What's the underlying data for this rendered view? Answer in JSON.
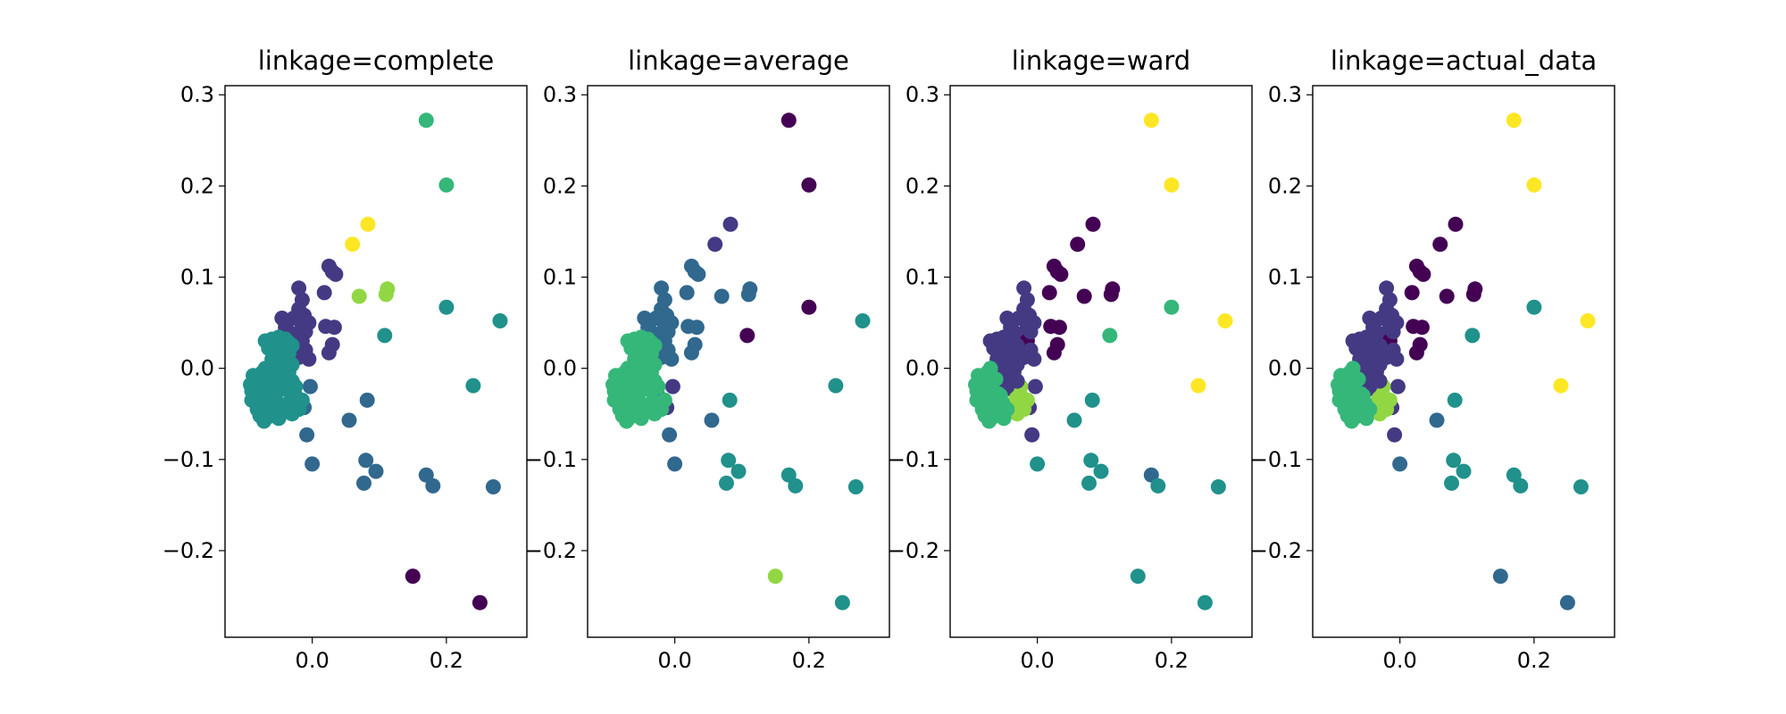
{
  "figure": {
    "background": "#ffffff"
  },
  "chart_data": [
    {
      "type": "scatter",
      "title": "linkage=complete",
      "xlim": [
        -0.13,
        0.32
      ],
      "ylim": [
        -0.295,
        0.31
      ],
      "xticks": [
        0.0,
        0.2
      ],
      "xtick_labels": [
        "0.0",
        "0.2"
      ],
      "yticks": [
        0.3,
        0.2,
        0.1,
        0.0,
        -0.1,
        -0.2
      ],
      "ytick_labels": [
        "0.3",
        "0.2",
        "0.1",
        "0.0",
        "−0.1",
        "−0.2"
      ],
      "cluster_colors": [
        "#440154",
        "#443a83",
        "#31688e",
        "#21918c",
        "#35b779",
        "#90d743",
        "#fde725"
      ],
      "point_labels": [
        0,
        0,
        2,
        2,
        2,
        2,
        2,
        2,
        2,
        2,
        2,
        2,
        2,
        2,
        1,
        1,
        1,
        1,
        1,
        1,
        1,
        1,
        1,
        1,
        1,
        1,
        1,
        1,
        1,
        1,
        1,
        1,
        1,
        1,
        1,
        1,
        1,
        1,
        1,
        6,
        6,
        5,
        5,
        5,
        3,
        3,
        4,
        4,
        3,
        3,
        3,
        3,
        3,
        3,
        3,
        3,
        3,
        3,
        3,
        3,
        3,
        3,
        3,
        3,
        3,
        3,
        3,
        3,
        3,
        3,
        3,
        3,
        3,
        3,
        3,
        3,
        3,
        3,
        3,
        3,
        3,
        3,
        3,
        3,
        3,
        3,
        3,
        3,
        3,
        3,
        3,
        3,
        3,
        3,
        3,
        3,
        3,
        3,
        3,
        3,
        3,
        3,
        3,
        3,
        3,
        3,
        3,
        3,
        3,
        3,
        3,
        3,
        3,
        3,
        3,
        3,
        3,
        3,
        3,
        3
      ]
    },
    {
      "type": "scatter",
      "title": "linkage=average",
      "xlim": [
        -0.13,
        0.32
      ],
      "ylim": [
        -0.295,
        0.31
      ],
      "xticks": [
        0.0,
        0.2
      ],
      "xtick_labels": [
        "0.0",
        "0.2"
      ],
      "yticks": [
        0.3,
        0.2,
        0.1,
        0.0,
        -0.1,
        -0.2
      ],
      "ytick_labels": [
        "0.3",
        "0.2",
        "0.1",
        "0.0",
        "−0.1",
        "−0.2"
      ],
      "cluster_colors": [
        "#440154",
        "#443a83",
        "#31688e",
        "#21918c",
        "#35b779",
        "#90d743",
        "#fde725"
      ],
      "point_labels": [
        5,
        3,
        3,
        3,
        3,
        3,
        3,
        3,
        3,
        2,
        2,
        2,
        1,
        1,
        2,
        2,
        2,
        2,
        2,
        2,
        2,
        2,
        2,
        2,
        2,
        2,
        2,
        2,
        2,
        2,
        2,
        2,
        2,
        2,
        2,
        2,
        2,
        2,
        2,
        1,
        1,
        2,
        2,
        2,
        0,
        0,
        0,
        0,
        3,
        3,
        3,
        4,
        4,
        4,
        4,
        4,
        4,
        4,
        4,
        4,
        4,
        4,
        4,
        4,
        4,
        4,
        4,
        4,
        4,
        4,
        4,
        4,
        4,
        4,
        4,
        4,
        4,
        4,
        4,
        4,
        4,
        4,
        4,
        4,
        4,
        4,
        4,
        4,
        4,
        4,
        4,
        4,
        4,
        4,
        4,
        4,
        4,
        4,
        4,
        4,
        4,
        4,
        4,
        4,
        4,
        4,
        4,
        4,
        4,
        4,
        4,
        4,
        4,
        4,
        4,
        4,
        4,
        4,
        4,
        4
      ]
    },
    {
      "type": "scatter",
      "title": "linkage=ward",
      "xlim": [
        -0.13,
        0.32
      ],
      "ylim": [
        -0.295,
        0.31
      ],
      "xticks": [
        0.0,
        0.2
      ],
      "xtick_labels": [
        "0.0",
        "0.2"
      ],
      "yticks": [
        0.3,
        0.2,
        0.1,
        0.0,
        -0.1,
        -0.2
      ],
      "ytick_labels": [
        "0.3",
        "0.2",
        "0.1",
        "0.0",
        "−0.1",
        "−0.2"
      ],
      "cluster_colors": [
        "#440154",
        "#443a83",
        "#31688e",
        "#21918c",
        "#35b779",
        "#90d743",
        "#fde725"
      ],
      "point_labels": [
        3,
        3,
        2,
        3,
        3,
        3,
        3,
        3,
        3,
        3,
        3,
        1,
        1,
        1,
        1,
        1,
        1,
        1,
        1,
        1,
        1,
        1,
        1,
        1,
        1,
        1,
        0,
        0,
        0,
        0,
        0,
        0,
        0,
        0,
        0,
        1,
        1,
        1,
        1,
        0,
        0,
        0,
        0,
        0,
        4,
        4,
        6,
        6,
        6,
        6,
        5,
        5,
        5,
        5,
        5,
        5,
        5,
        5,
        5,
        5,
        5,
        1,
        1,
        1,
        1,
        1,
        1,
        1,
        1,
        1,
        1,
        1,
        1,
        1,
        1,
        1,
        1,
        1,
        1,
        1,
        1,
        1,
        1,
        1,
        1,
        1,
        1,
        1,
        1,
        4,
        4,
        4,
        4,
        4,
        4,
        4,
        4,
        4,
        4,
        4,
        4,
        4,
        4,
        4,
        4,
        4,
        4,
        4,
        4,
        4,
        4,
        4,
        4,
        4,
        4,
        4,
        4,
        4,
        4,
        4
      ]
    },
    {
      "type": "scatter",
      "title": "linkage=actual_data",
      "xlim": [
        -0.13,
        0.32
      ],
      "ylim": [
        -0.295,
        0.31
      ],
      "xticks": [
        0.0,
        0.2
      ],
      "xtick_labels": [
        "0.0",
        "0.2"
      ],
      "yticks": [
        0.3,
        0.2,
        0.1,
        0.0,
        -0.1,
        -0.2
      ],
      "ytick_labels": [
        "0.3",
        "0.2",
        "0.1",
        "0.0",
        "−0.1",
        "−0.2"
      ],
      "cluster_colors": [
        "#440154",
        "#443a83",
        "#31688e",
        "#21918c",
        "#35b779",
        "#90d743",
        "#fde725"
      ],
      "point_labels": [
        2,
        2,
        3,
        3,
        3,
        3,
        3,
        3,
        3,
        2,
        2,
        1,
        1,
        1,
        1,
        1,
        1,
        1,
        1,
        1,
        1,
        1,
        1,
        1,
        1,
        1,
        0,
        0,
        0,
        0,
        0,
        0,
        0,
        0,
        0,
        1,
        1,
        1,
        1,
        0,
        0,
        0,
        0,
        0,
        3,
        3,
        6,
        6,
        6,
        6,
        5,
        5,
        5,
        5,
        5,
        5,
        5,
        5,
        5,
        5,
        5,
        1,
        1,
        1,
        1,
        1,
        1,
        1,
        1,
        1,
        1,
        1,
        1,
        1,
        1,
        1,
        1,
        1,
        1,
        1,
        1,
        1,
        1,
        1,
        1,
        1,
        1,
        1,
        1,
        4,
        4,
        4,
        4,
        4,
        4,
        4,
        4,
        4,
        4,
        4,
        4,
        4,
        4,
        4,
        4,
        4,
        4,
        4,
        4,
        4,
        4,
        4,
        4,
        4,
        4,
        4,
        4,
        4,
        4,
        4
      ]
    }
  ],
  "points": [
    [
      0.15,
      -0.228
    ],
    [
      0.25,
      -0.257
    ],
    [
      0.17,
      -0.117
    ],
    [
      0.18,
      -0.129
    ],
    [
      0.27,
      -0.13
    ],
    [
      0.08,
      -0.101
    ],
    [
      0.095,
      -0.113
    ],
    [
      0.077,
      -0.126
    ],
    [
      0.082,
      -0.035
    ],
    [
      0.055,
      -0.057
    ],
    [
      0.0,
      -0.105
    ],
    [
      -0.008,
      -0.073
    ],
    [
      -0.012,
      -0.043
    ],
    [
      -0.003,
      -0.02
    ],
    [
      -0.02,
      0.088
    ],
    [
      -0.015,
      0.075
    ],
    [
      -0.02,
      0.065
    ],
    [
      -0.012,
      0.058
    ],
    [
      -0.028,
      0.055
    ],
    [
      -0.04,
      0.05
    ],
    [
      -0.045,
      0.055
    ],
    [
      -0.04,
      0.045
    ],
    [
      -0.035,
      0.04
    ],
    [
      -0.015,
      0.045
    ],
    [
      -0.005,
      0.05
    ],
    [
      -0.02,
      0.035
    ],
    [
      0.025,
      0.112
    ],
    [
      0.03,
      0.106
    ],
    [
      0.035,
      0.103
    ],
    [
      0.018,
      0.083
    ],
    [
      0.02,
      0.046
    ],
    [
      0.033,
      0.045
    ],
    [
      0.03,
      0.026
    ],
    [
      0.025,
      0.017
    ],
    [
      -0.015,
      0.03
    ],
    [
      -0.01,
      0.02
    ],
    [
      -0.005,
      0.01
    ],
    [
      -0.02,
      0.012
    ],
    [
      -0.01,
      0.04
    ],
    [
      0.06,
      0.136
    ],
    [
      0.083,
      0.158
    ],
    [
      0.112,
      0.087
    ],
    [
      0.11,
      0.081
    ],
    [
      0.07,
      0.079
    ],
    [
      0.108,
      0.036
    ],
    [
      0.2,
      0.067
    ],
    [
      0.17,
      0.272
    ],
    [
      0.2,
      0.201
    ],
    [
      0.28,
      0.052
    ],
    [
      0.24,
      -0.019
    ],
    [
      -0.025,
      -0.03
    ],
    [
      -0.03,
      -0.05
    ],
    [
      -0.02,
      -0.045
    ],
    [
      -0.015,
      -0.035
    ],
    [
      -0.025,
      -0.02
    ],
    [
      -0.035,
      -0.025
    ],
    [
      -0.04,
      -0.04
    ],
    [
      -0.03,
      -0.038
    ],
    [
      -0.045,
      -0.048
    ],
    [
      -0.05,
      -0.052
    ],
    [
      -0.055,
      -0.045
    ],
    [
      -0.07,
      0.03
    ],
    [
      -0.06,
      0.032
    ],
    [
      -0.05,
      0.034
    ],
    [
      -0.04,
      0.032
    ],
    [
      -0.035,
      0.028
    ],
    [
      -0.03,
      0.025
    ],
    [
      -0.065,
      0.022
    ],
    [
      -0.055,
      0.02
    ],
    [
      -0.045,
      0.018
    ],
    [
      -0.035,
      0.016
    ],
    [
      -0.06,
      0.01
    ],
    [
      -0.05,
      0.008
    ],
    [
      -0.04,
      0.005
    ],
    [
      -0.03,
      0.004
    ],
    [
      -0.055,
      0.0
    ],
    [
      -0.045,
      -0.002
    ],
    [
      -0.035,
      -0.004
    ],
    [
      -0.06,
      -0.008
    ],
    [
      -0.05,
      -0.01
    ],
    [
      -0.04,
      -0.012
    ],
    [
      -0.03,
      -0.014
    ],
    [
      -0.065,
      -0.016
    ],
    [
      -0.055,
      -0.018
    ],
    [
      -0.045,
      -0.02
    ],
    [
      -0.06,
      -0.022
    ],
    [
      -0.05,
      -0.024
    ],
    [
      -0.04,
      0.012
    ],
    [
      -0.048,
      0.026
    ],
    [
      -0.08,
      -0.02
    ],
    [
      -0.085,
      -0.03
    ],
    [
      -0.09,
      -0.035
    ],
    [
      -0.075,
      -0.03
    ],
    [
      -0.08,
      -0.04
    ],
    [
      -0.07,
      -0.035
    ],
    [
      -0.075,
      -0.045
    ],
    [
      -0.065,
      -0.04
    ],
    [
      -0.07,
      -0.05
    ],
    [
      -0.06,
      -0.045
    ],
    [
      -0.065,
      -0.053
    ],
    [
      -0.06,
      -0.035
    ],
    [
      -0.055,
      -0.03
    ],
    [
      -0.07,
      -0.025
    ],
    [
      -0.08,
      -0.01
    ],
    [
      -0.075,
      -0.005
    ],
    [
      -0.07,
      0.0
    ],
    [
      -0.085,
      -0.015
    ],
    [
      -0.09,
      -0.025
    ],
    [
      -0.078,
      -0.052
    ],
    [
      -0.068,
      -0.018
    ],
    [
      -0.058,
      -0.028
    ],
    [
      -0.082,
      -0.045
    ],
    [
      -0.072,
      -0.058
    ],
    [
      -0.05,
      -0.055
    ],
    [
      -0.045,
      -0.045
    ],
    [
      -0.062,
      -0.012
    ],
    [
      -0.052,
      -0.038
    ],
    [
      -0.088,
      -0.008
    ],
    [
      -0.092,
      -0.018
    ]
  ]
}
